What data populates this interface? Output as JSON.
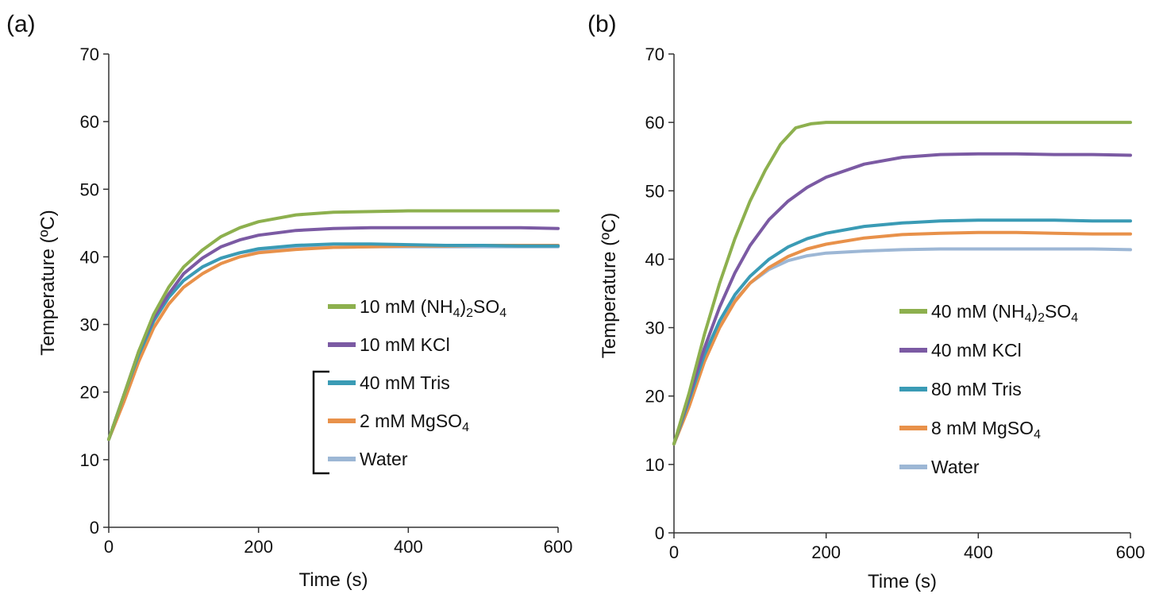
{
  "chart_data": [
    {
      "panel_label": "(a)",
      "type": "line",
      "xlabel": "Time (s)",
      "ylabel": "Temperature (ºC)",
      "xlim": [
        0,
        600
      ],
      "ylim": [
        0,
        70
      ],
      "xticks": [
        0,
        200,
        400,
        600
      ],
      "yticks": [
        0,
        10,
        20,
        30,
        40,
        50,
        60,
        70
      ],
      "grid": false,
      "legend_position": "bottom-right",
      "legend_bracket_groups": [
        [
          "40 mM Tris",
          "2 mM MgSO4",
          "Water"
        ]
      ],
      "series": [
        {
          "name": "10 mM (NH4)2SO4",
          "label_parts": [
            "10 mM (NH",
            "4",
            ")",
            "2",
            "SO",
            "4"
          ],
          "color": "#8DB04E",
          "x": [
            0,
            20,
            40,
            60,
            80,
            100,
            125,
            150,
            175,
            200,
            250,
            300,
            350,
            400,
            450,
            500,
            550,
            600
          ],
          "y": [
            13,
            19.5,
            26,
            31.5,
            35.5,
            38.5,
            41,
            43,
            44.3,
            45.2,
            46.2,
            46.6,
            46.7,
            46.8,
            46.8,
            46.8,
            46.8,
            46.8
          ]
        },
        {
          "name": "10 mM KCl",
          "label_parts": [
            "10 mM KCl"
          ],
          "color": "#7B5AA3",
          "x": [
            0,
            20,
            40,
            60,
            80,
            100,
            125,
            150,
            175,
            200,
            250,
            300,
            350,
            400,
            450,
            500,
            550,
            600
          ],
          "y": [
            13,
            19.5,
            26,
            31,
            34.5,
            37.5,
            39.8,
            41.5,
            42.5,
            43.2,
            43.9,
            44.2,
            44.3,
            44.3,
            44.3,
            44.3,
            44.3,
            44.2
          ]
        },
        {
          "name": "40 mM Tris",
          "label_parts": [
            "40 mM Tris"
          ],
          "color": "#3A9BB5",
          "x": [
            0,
            20,
            40,
            60,
            80,
            100,
            125,
            150,
            175,
            200,
            250,
            300,
            350,
            400,
            450,
            500,
            550,
            600
          ],
          "y": [
            13,
            19.5,
            25.5,
            30.5,
            34,
            36.5,
            38.5,
            39.8,
            40.6,
            41.2,
            41.7,
            41.9,
            41.9,
            41.8,
            41.7,
            41.7,
            41.6,
            41.6
          ]
        },
        {
          "name": "2 mM MgSO4",
          "label_parts": [
            "2 mM MgSO",
            "4"
          ],
          "color": "#E8914A",
          "x": [
            0,
            20,
            40,
            60,
            80,
            100,
            125,
            150,
            175,
            200,
            250,
            300,
            350,
            400,
            450,
            500,
            550,
            600
          ],
          "y": [
            13,
            18.5,
            24.5,
            29.5,
            33,
            35.5,
            37.5,
            39,
            40,
            40.6,
            41.1,
            41.4,
            41.5,
            41.6,
            41.6,
            41.7,
            41.7,
            41.7
          ]
        },
        {
          "name": "Water",
          "label_parts": [
            "Water"
          ],
          "color": "#9DB7D5",
          "x": [
            0,
            20,
            40,
            60,
            80,
            100,
            125,
            150,
            175,
            200,
            250,
            300,
            350,
            400,
            450,
            500,
            550,
            600
          ],
          "y": [
            13,
            19.5,
            25.5,
            30.5,
            34,
            36.5,
            38.5,
            39.8,
            40.6,
            41,
            41.3,
            41.4,
            41.5,
            41.5,
            41.5,
            41.5,
            41.5,
            41.5
          ]
        }
      ]
    },
    {
      "panel_label": "(b)",
      "type": "line",
      "xlabel": "Time (s)",
      "ylabel": "Temperature (ºC)",
      "xlim": [
        0,
        600
      ],
      "ylim": [
        0,
        70
      ],
      "xticks": [
        0,
        200,
        400,
        600
      ],
      "yticks": [
        0,
        10,
        20,
        30,
        40,
        50,
        60,
        70
      ],
      "grid": false,
      "legend_position": "bottom-right",
      "series": [
        {
          "name": "40 mM (NH4)2SO4",
          "label_parts": [
            "40 mM (NH",
            "4",
            ")",
            "2",
            "SO",
            "4"
          ],
          "color": "#8DB04E",
          "x": [
            0,
            20,
            40,
            60,
            80,
            100,
            120,
            140,
            160,
            180,
            200,
            250,
            300,
            400,
            500,
            600
          ],
          "y": [
            13,
            20.5,
            29,
            36.5,
            43,
            48.5,
            53,
            56.8,
            59.2,
            59.8,
            60,
            60,
            60,
            60,
            60,
            60
          ]
        },
        {
          "name": "40 mM KCl",
          "label_parts": [
            "40 mM KCl"
          ],
          "color": "#7B5AA3",
          "x": [
            0,
            20,
            40,
            60,
            80,
            100,
            125,
            150,
            175,
            200,
            250,
            300,
            350,
            400,
            450,
            500,
            550,
            600
          ],
          "y": [
            13,
            20,
            27,
            33,
            38,
            42,
            45.8,
            48.5,
            50.5,
            52,
            53.9,
            54.9,
            55.3,
            55.4,
            55.4,
            55.3,
            55.3,
            55.2
          ]
        },
        {
          "name": "80 mM Tris",
          "label_parts": [
            "80 mM Tris"
          ],
          "color": "#3A9BB5",
          "x": [
            0,
            20,
            40,
            60,
            80,
            100,
            125,
            150,
            175,
            200,
            250,
            300,
            350,
            400,
            450,
            500,
            550,
            600
          ],
          "y": [
            13,
            19.5,
            26,
            31,
            34.8,
            37.5,
            40,
            41.8,
            43,
            43.8,
            44.8,
            45.3,
            45.6,
            45.7,
            45.7,
            45.7,
            45.6,
            45.6
          ]
        },
        {
          "name": "8 mM MgSO4",
          "label_parts": [
            "8 mM MgSO",
            "4"
          ],
          "color": "#E8914A",
          "x": [
            0,
            20,
            40,
            60,
            80,
            100,
            125,
            150,
            175,
            200,
            250,
            300,
            350,
            400,
            450,
            500,
            550,
            600
          ],
          "y": [
            13,
            18.5,
            25,
            30,
            33.8,
            36.5,
            38.8,
            40.4,
            41.5,
            42.2,
            43.1,
            43.6,
            43.8,
            43.9,
            43.9,
            43.8,
            43.7,
            43.7
          ]
        },
        {
          "name": "Water",
          "label_parts": [
            "Water"
          ],
          "color": "#9DB7D5",
          "x": [
            0,
            20,
            40,
            60,
            80,
            100,
            125,
            150,
            175,
            200,
            250,
            300,
            350,
            400,
            450,
            500,
            550,
            600
          ],
          "y": [
            13,
            19.5,
            25.5,
            30.5,
            34,
            36.5,
            38.5,
            39.8,
            40.5,
            40.9,
            41.2,
            41.4,
            41.5,
            41.5,
            41.5,
            41.5,
            41.5,
            41.4
          ]
        }
      ]
    }
  ]
}
